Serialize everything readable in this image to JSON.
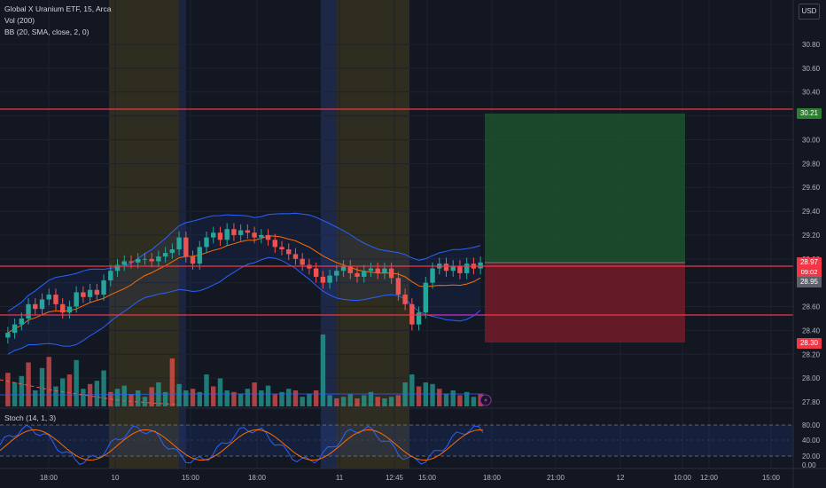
{
  "legend": {
    "symbol": "Global X Uranium ETF, 15, Arca",
    "volume": "Vol (200)",
    "bollinger": "BB (20, SMA, close, 2, 0)",
    "stoch": "Stoch (14, 1, 3)"
  },
  "currency": "USD",
  "price_axis": {
    "ticks": [
      "30.80",
      "30.60",
      "30.40",
      "30.20",
      "30.00",
      "29.80",
      "29.60",
      "29.40",
      "29.20",
      "29.00",
      "28.80",
      "28.60",
      "28.40",
      "28.20",
      "28.00",
      "27.80"
    ]
  },
  "price_tags": {
    "target": "30.21",
    "last": "28.97",
    "countdown": "09:02",
    "entry": "28.95",
    "stop": "28.30"
  },
  "stoch_axis": {
    "ticks": [
      "80.00",
      "40.00",
      "20.00",
      "0.00"
    ]
  },
  "time_axis": {
    "ticks": [
      "18:00",
      "10",
      "15:00",
      "18:00",
      "11",
      "12:45",
      "15:00",
      "18:00",
      "21:00",
      "12",
      "10:00",
      "12:00",
      "15:00"
    ]
  },
  "colors": {
    "up": "#26a69a",
    "down": "#ef5350",
    "bb_band": "#2962ff",
    "bb_basis": "#ff6d00",
    "level_line": "#f23645",
    "target_zone": "#1b5e20",
    "stop_zone": "#b71c1c"
  },
  "chart_data": {
    "type": "candlestick",
    "y_range": [
      27.75,
      30.92
    ],
    "horizontal_levels": [
      30.21,
      28.97,
      28.55
    ],
    "position": {
      "entry": 28.95,
      "target": 30.21,
      "stop": 28.3
    },
    "stoch_levels": [
      80,
      20
    ],
    "stoch_range": [
      0,
      100
    ]
  },
  "icons": {
    "alert": "lightning-icon"
  }
}
